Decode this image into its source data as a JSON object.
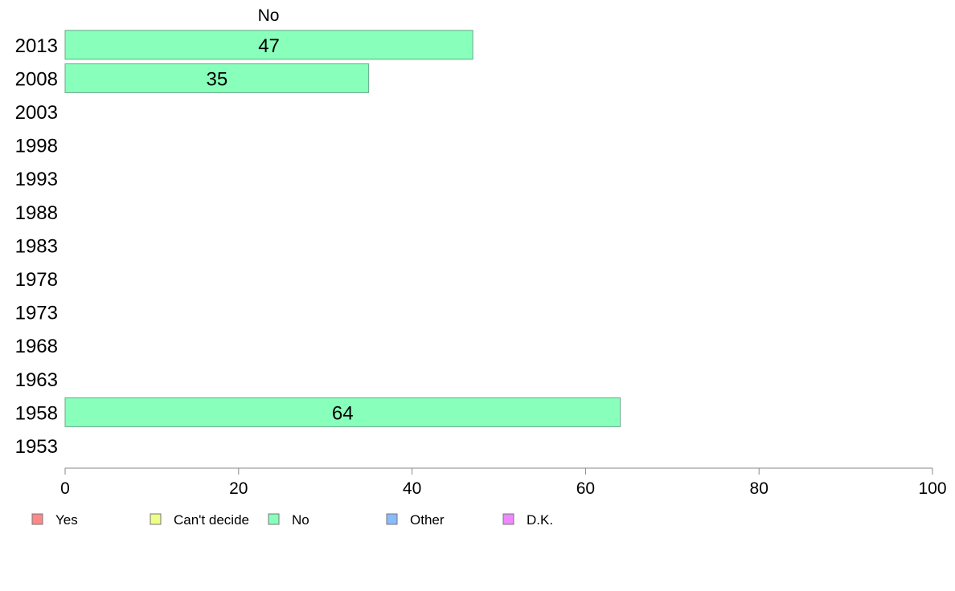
{
  "chart_data": {
    "type": "bar",
    "orientation": "horizontal",
    "categories": [
      "2013",
      "2008",
      "2003",
      "1998",
      "1993",
      "1988",
      "1983",
      "1978",
      "1973",
      "1968",
      "1963",
      "1958",
      "1953"
    ],
    "series": [
      {
        "name": "No",
        "values": [
          47,
          35,
          null,
          null,
          null,
          null,
          null,
          null,
          null,
          null,
          null,
          64,
          null
        ],
        "color": "#88ffbb"
      }
    ],
    "data_labels": [
      "47",
      "35",
      "",
      "",
      "",
      "",
      "",
      "",
      "",
      "",
      "",
      "64",
      ""
    ],
    "xlim": [
      0,
      100
    ],
    "xticks": [
      0,
      20,
      40,
      60,
      80,
      100
    ],
    "xtick_labels": [
      "0",
      "20",
      "40",
      "60",
      "80",
      "100"
    ],
    "series_title": "No",
    "legend": {
      "position": "bottom",
      "items": [
        {
          "label": "Yes",
          "color": "#ff8888"
        },
        {
          "label": "Can't decide",
          "color": "#eeff88"
        },
        {
          "label": "No",
          "color": "#88ffbb"
        },
        {
          "label": "Other",
          "color": "#88bbff"
        },
        {
          "label": "D.K.",
          "color": "#ee88ff"
        }
      ]
    },
    "grid": false
  }
}
